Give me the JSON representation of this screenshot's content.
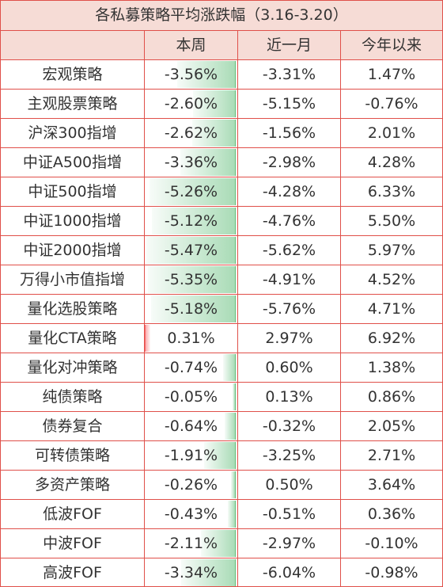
{
  "title": "各私募策略平均涨跌幅（3.16-3.20）",
  "columns": [
    "",
    "本周",
    "近一月",
    "今年以来"
  ],
  "colors": {
    "border": "#e0504a",
    "header_bg": "#f6dcd6",
    "negative_bar": "#63be7b",
    "positive_bar": "#f8696b"
  },
  "rows": [
    {
      "name": "宏观策略",
      "week": "-3.56%",
      "week_value": -3.56,
      "month": "-3.31%",
      "ytd": "1.47%"
    },
    {
      "name": "主观股票策略",
      "week": "-2.60%",
      "week_value": -2.6,
      "month": "-5.15%",
      "ytd": "-0.76%"
    },
    {
      "name": "沪深300指增",
      "week": "-2.62%",
      "week_value": -2.62,
      "month": "-1.56%",
      "ytd": "2.01%"
    },
    {
      "name": "中证A500指增",
      "week": "-3.36%",
      "week_value": -3.36,
      "month": "-2.98%",
      "ytd": "4.28%"
    },
    {
      "name": "中证500指增",
      "week": "-5.26%",
      "week_value": -5.26,
      "month": "-4.28%",
      "ytd": "6.33%"
    },
    {
      "name": "中证1000指增",
      "week": "-5.12%",
      "week_value": -5.12,
      "month": "-4.76%",
      "ytd": "5.50%"
    },
    {
      "name": "中证2000指增",
      "week": "-5.47%",
      "week_value": -5.47,
      "month": "-5.62%",
      "ytd": "5.97%"
    },
    {
      "name": "万得小市值指增",
      "week": "-5.35%",
      "week_value": -5.35,
      "month": "-4.91%",
      "ytd": "4.52%"
    },
    {
      "name": "量化选股策略",
      "week": "-5.18%",
      "week_value": -5.18,
      "month": "-5.76%",
      "ytd": "4.71%"
    },
    {
      "name": "量化CTA策略",
      "week": "0.31%",
      "week_value": 0.31,
      "month": "2.97%",
      "ytd": "6.92%"
    },
    {
      "name": "量化对冲策略",
      "week": "-0.74%",
      "week_value": -0.74,
      "month": "0.60%",
      "ytd": "1.38%"
    },
    {
      "name": "纯债策略",
      "week": "-0.05%",
      "week_value": -0.05,
      "month": "0.13%",
      "ytd": "0.86%"
    },
    {
      "name": "债券复合",
      "week": "-0.64%",
      "week_value": -0.64,
      "month": "-0.32%",
      "ytd": "2.05%"
    },
    {
      "name": "可转债策略",
      "week": "-1.91%",
      "week_value": -1.91,
      "month": "-3.25%",
      "ytd": "2.71%"
    },
    {
      "name": "多资产策略",
      "week": "-0.26%",
      "week_value": -0.26,
      "month": "0.50%",
      "ytd": "3.64%"
    },
    {
      "name": "低波FOF",
      "week": "-0.43%",
      "week_value": -0.43,
      "month": "-0.51%",
      "ytd": "0.36%"
    },
    {
      "name": "中波FOF",
      "week": "-2.11%",
      "week_value": -2.11,
      "month": "-2.97%",
      "ytd": "-0.10%"
    },
    {
      "name": "高波FOF",
      "week": "-3.34%",
      "week_value": -3.34,
      "month": "-6.04%",
      "ytd": "-0.98%"
    }
  ]
}
